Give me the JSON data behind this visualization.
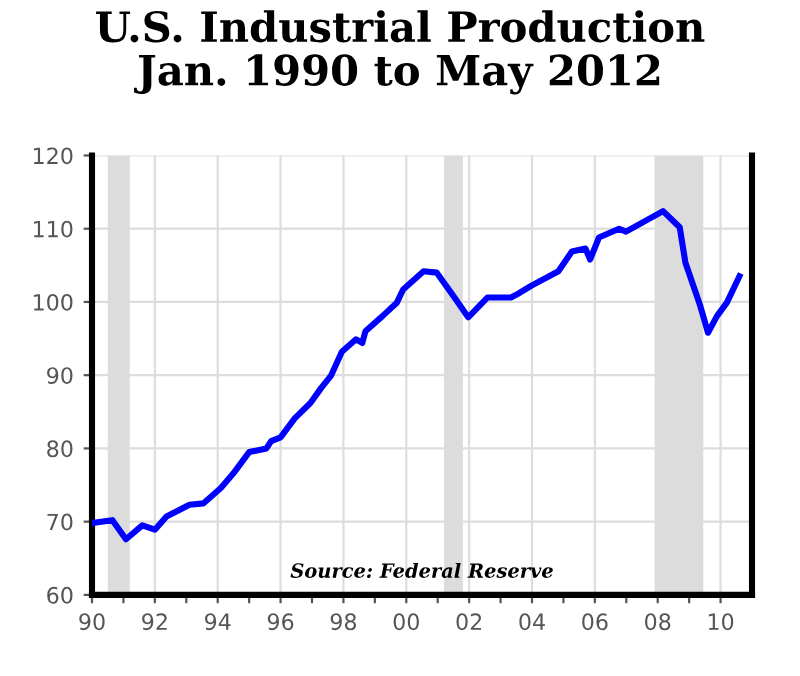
{
  "chart_data": {
    "type": "line",
    "title": "U.S. Industrial Production\nJan. 1990 to May 2012",
    "x": [
      1990,
      1990.65,
      1991.08,
      1991.6,
      1992.0,
      1992.37,
      1993.1,
      1993.55,
      1994.1,
      1994.5,
      1995.0,
      1995.55,
      1995.7,
      1996.0,
      1996.45,
      1996.95,
      1997.3,
      1997.6,
      1997.95,
      1998.4,
      1998.6,
      1998.7,
      1999.25,
      1999.7,
      1999.9,
      2000.55,
      2000.97,
      2001.5,
      2001.97,
      2002.58,
      2003.33,
      2003.55,
      2003.97,
      2004.84,
      2005.27,
      2005.7,
      2005.85,
      2006.13,
      2006.77,
      2006.99,
      2008.17,
      2008.7,
      2008.88,
      2009.35,
      2009.6,
      2009.89,
      2010.2,
      2010.6
    ],
    "series": [
      {
        "color": "#0000ff",
        "values": [
          69.8,
          70.2,
          67.6,
          69.5,
          68.9,
          70.7,
          72.3,
          72.5,
          74.6,
          76.6,
          79.5,
          80.0,
          81.0,
          81.5,
          84.1,
          86.2,
          88.3,
          89.9,
          93.2,
          94.9,
          94.4,
          96.0,
          98.1,
          99.9,
          101.7,
          104.2,
          104.0,
          100.8,
          97.9,
          100.6,
          100.6,
          101.1,
          102.2,
          104.2,
          106.9,
          107.3,
          105.8,
          108.8,
          110.0,
          109.6,
          112.4,
          110.2,
          105.4,
          99.5,
          95.8,
          98.1,
          99.9,
          103.5
        ]
      }
    ],
    "xlim": [
      1990,
      2011
    ],
    "ylim": [
      60,
      120
    ],
    "xticks": [
      {
        "value": 1990,
        "label": "90"
      },
      {
        "value": 1991,
        "label": null
      },
      {
        "value": 1992,
        "label": "92"
      },
      {
        "value": 1993,
        "label": null
      },
      {
        "value": 1994,
        "label": "94"
      },
      {
        "value": 1995,
        "label": null
      },
      {
        "value": 1996,
        "label": "96"
      },
      {
        "value": 1997,
        "label": null
      },
      {
        "value": 1998,
        "label": "98"
      },
      {
        "value": 1999,
        "label": null
      },
      {
        "value": 2000,
        "label": "00"
      },
      {
        "value": 2001,
        "label": null
      },
      {
        "value": 2002,
        "label": "02"
      },
      {
        "value": 2003,
        "label": null
      },
      {
        "value": 2004,
        "label": "04"
      },
      {
        "value": 2005,
        "label": null
      },
      {
        "value": 2006,
        "label": "06"
      },
      {
        "value": 2007,
        "label": null
      },
      {
        "value": 2008,
        "label": "08"
      },
      {
        "value": 2009,
        "label": null
      },
      {
        "value": 2010,
        "label": "10"
      }
    ],
    "yticks": [
      60,
      70,
      80,
      90,
      100,
      110,
      120
    ],
    "bands": [
      {
        "axis": "x",
        "from": 1990.5,
        "to": 1991.2,
        "color": "#dcdcdc"
      },
      {
        "axis": "x",
        "from": 2001.2,
        "to": 2001.8,
        "color": "#dcdcdc"
      },
      {
        "axis": "x",
        "from": 2007.9,
        "to": 2009.45,
        "color": "#dcdcdc"
      }
    ],
    "annotations": [
      "Source: Federal Reserve"
    ],
    "grid": true,
    "marker": "none",
    "line_style": "solid"
  }
}
